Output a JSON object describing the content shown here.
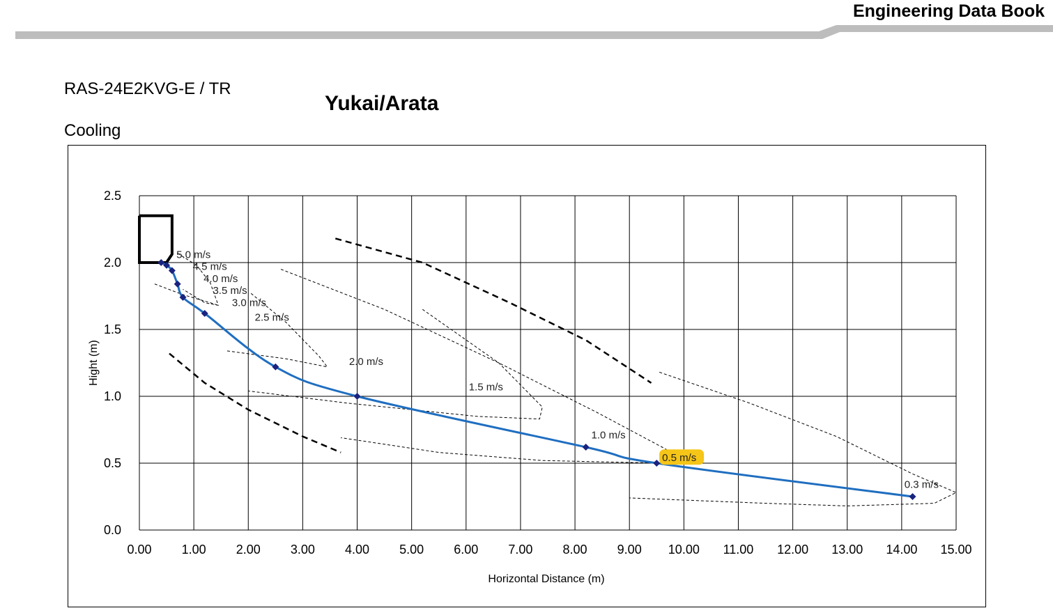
{
  "header": {
    "title": "Engineering Data Book"
  },
  "model": "RAS-24E2KVG-E / TR",
  "brand": "Yukai/Arata",
  "mode": "Cooling",
  "colors": {
    "curve": "#1F6EC0",
    "marker": "#1A237E",
    "highlight": "#F5C518",
    "header_bar": "#BDBDBD"
  },
  "chart_data": {
    "type": "line",
    "title": "",
    "xlabel": "Horizontal Distance (m)",
    "ylabel": "Hight (m)",
    "xlim": [
      0,
      15
    ],
    "ylim": [
      0,
      2.5
    ],
    "x_ticks": [
      "0.00",
      "1.00",
      "2.00",
      "3.00",
      "4.00",
      "5.00",
      "6.00",
      "7.00",
      "8.00",
      "9.00",
      "10.00",
      "11.00",
      "12.00",
      "13.00",
      "14.00",
      "15.00"
    ],
    "y_ticks": [
      "0.0",
      "0.5",
      "1.0",
      "1.5",
      "2.0",
      "2.5"
    ],
    "grid": true,
    "series": [
      {
        "x": [
          0.4,
          0.5,
          0.6,
          0.7,
          0.8,
          1.2,
          2.5,
          4.0,
          8.2,
          9.5,
          14.2
        ],
        "y": [
          2.0,
          1.98,
          1.94,
          1.84,
          1.74,
          1.62,
          1.22,
          1.0,
          0.62,
          0.5,
          0.25
        ]
      }
    ],
    "velocity_labels": [
      {
        "text": "5.0 m/s",
        "x": 0.68,
        "y": 2.05
      },
      {
        "text": "4.5 m/s",
        "x": 0.98,
        "y": 1.96
      },
      {
        "text": "4.0 m/s",
        "x": 1.18,
        "y": 1.87
      },
      {
        "text": "3.5 m/s",
        "x": 1.35,
        "y": 1.78
      },
      {
        "text": "3.0 m/s",
        "x": 1.7,
        "y": 1.69
      },
      {
        "text": "2.5 m/s",
        "x": 2.12,
        "y": 1.58
      },
      {
        "text": "2.0 m/s",
        "x": 3.85,
        "y": 1.25
      },
      {
        "text": "1.5 m/s",
        "x": 6.05,
        "y": 1.06
      },
      {
        "text": "1.0 m/s",
        "x": 8.3,
        "y": 0.7
      },
      {
        "text": "0.5 m/s",
        "x": 9.6,
        "y": 0.53,
        "highlight": true
      },
      {
        "text": "0.3 m/s",
        "x": 14.05,
        "y": 0.33
      }
    ],
    "unit_outline": {
      "x": [
        0,
        0.6
      ],
      "y": [
        2.0,
        2.35
      ]
    }
  }
}
